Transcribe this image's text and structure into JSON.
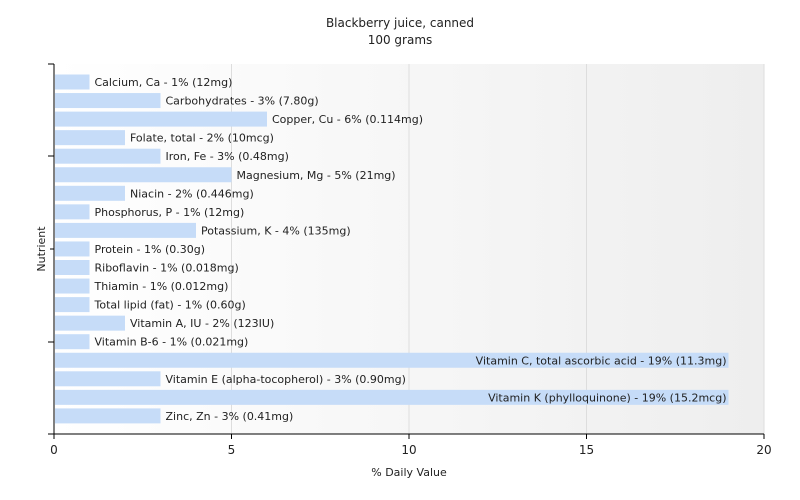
{
  "chart_data": {
    "type": "bar",
    "orientation": "horizontal",
    "title": "Blackberry juice, canned",
    "subtitle": "100 grams",
    "xlabel": "% Daily Value",
    "ylabel": "Nutrient",
    "xlim": [
      0,
      20
    ],
    "xticks": [
      0,
      5,
      10,
      15,
      20
    ],
    "grid": true,
    "bar_color": "#c6dcf8",
    "categories": [
      "Calcium, Ca",
      "Carbohydrates",
      "Copper, Cu",
      "Folate, total",
      "Iron, Fe",
      "Magnesium, Mg",
      "Niacin",
      "Phosphorus, P",
      "Potassium, K",
      "Protein",
      "Riboflavin",
      "Thiamin",
      "Total lipid (fat)",
      "Vitamin A, IU",
      "Vitamin B-6",
      "Vitamin C, total ascorbic acid",
      "Vitamin E (alpha-tocopherol)",
      "Vitamin K (phylloquinone)",
      "Zinc, Zn"
    ],
    "values": [
      1,
      3,
      6,
      2,
      3,
      5,
      2,
      1,
      4,
      1,
      1,
      1,
      1,
      2,
      1,
      19,
      3,
      19,
      3
    ],
    "labels": [
      "Calcium, Ca - 1% (12mg)",
      "Carbohydrates - 3% (7.80g)",
      "Copper, Cu - 6% (0.114mg)",
      "Folate, total - 2% (10mcg)",
      "Iron, Fe - 3% (0.48mg)",
      "Magnesium, Mg - 5% (21mg)",
      "Niacin - 2% (0.446mg)",
      "Phosphorus, P - 1% (12mg)",
      "Potassium, K - 4% (135mg)",
      "Protein - 1% (0.30g)",
      "Riboflavin - 1% (0.018mg)",
      "Thiamin - 1% (0.012mg)",
      "Total lipid (fat) - 1% (0.60g)",
      "Vitamin A, IU - 2% (123IU)",
      "Vitamin B-6 - 1% (0.021mg)",
      "Vitamin C, total ascorbic acid - 19% (11.3mg)",
      "Vitamin E (alpha-tocopherol) - 3% (0.90mg)",
      "Vitamin K (phylloquinone) - 19% (15.2mcg)",
      "Zinc, Zn - 3% (0.41mg)"
    ]
  }
}
